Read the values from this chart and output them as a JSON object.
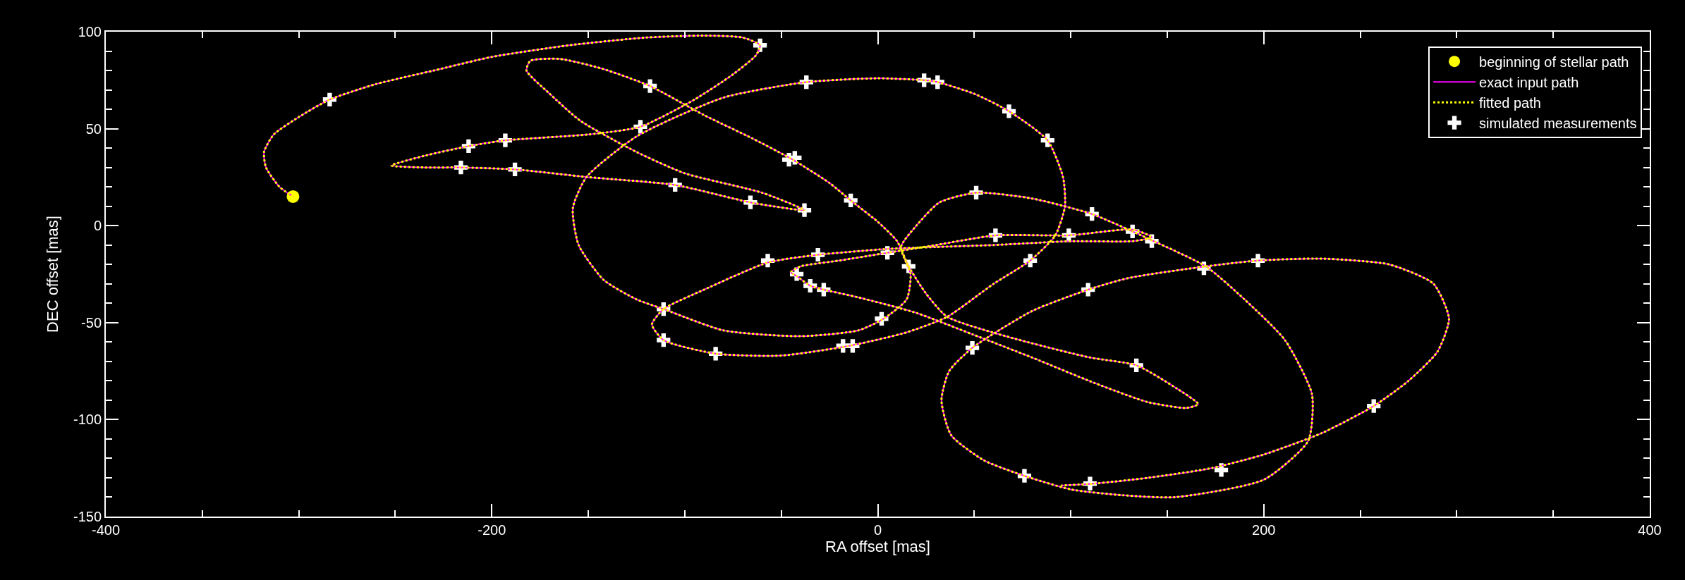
{
  "chart_data": {
    "type": "line",
    "xlabel": "RA offset [mas]",
    "ylabel": "DEC offset [mas]",
    "xlim": [
      -400,
      400
    ],
    "ylim": [
      -150,
      100
    ],
    "xticks": [
      -400,
      -200,
      0,
      200,
      400
    ],
    "yticks": [
      -150,
      -100,
      -50,
      0,
      50,
      100
    ],
    "grid": false,
    "legend": "top right",
    "series": [
      {
        "name": "beginning of stellar path",
        "type": "scatter",
        "marker": "circle",
        "color": "#ffff00",
        "x": [
          -303
        ],
        "values": [
          15
        ]
      },
      {
        "name": "exact input path",
        "line_style": "solid",
        "color": "#ff00ff",
        "x": [
          -303,
          -310,
          -317,
          -318,
          -313,
          -300,
          -284,
          -260,
          -230,
          -200,
          -160,
          -120,
          -90,
          -70,
          -61,
          -63,
          -75,
          -95,
          -123,
          -150,
          -193,
          -212,
          -235,
          -252,
          -235,
          -216,
          -188,
          -150,
          -105,
          -66,
          -38,
          -60,
          -100,
          -125,
          -154,
          -170,
          -182,
          -180,
          -165,
          -143,
          -118,
          -90,
          -65,
          -44,
          -25,
          -14,
          0,
          10,
          16,
          25,
          36,
          70,
          110,
          134,
          155,
          166,
          160,
          140,
          112,
          80,
          49,
          20,
          -10,
          -28,
          -35,
          -42,
          -45,
          -40,
          -20,
          5,
          30,
          61,
          99,
          132,
          142,
          132,
          100,
          60,
          30,
          5,
          -31,
          -57,
          -90,
          -111,
          -117,
          -111,
          -84,
          -50,
          -15,
          15,
          36,
          60,
          79,
          92,
          97,
          96,
          88,
          68,
          50,
          31,
          24,
          0,
          -37,
          -80,
          -125,
          -151,
          -158,
          -155,
          -142,
          -125,
          -111,
          -80,
          -40,
          -10,
          3,
          15,
          17,
          12,
          20,
          32,
          51,
          80,
          111,
          132,
          143,
          170,
          190,
          211,
          225,
          223,
          200,
          154,
          127,
          100,
          76,
          55,
          38,
          33,
          37,
          49,
          80,
          109,
          130,
          170,
          197,
          230,
          265,
          288,
          296,
          290,
          275,
          257,
          230,
          200,
          173,
          140,
          112,
          95
        ],
        "values": [
          15,
          20,
          30,
          38,
          47,
          56,
          65,
          73,
          80,
          87,
          93,
          97,
          98,
          97,
          93,
          88,
          78,
          65,
          51,
          47,
          44,
          41,
          36,
          31,
          30,
          30,
          29,
          25,
          21,
          12,
          8,
          17,
          27,
          38,
          54,
          68,
          80,
          85,
          86,
          81,
          72,
          57,
          45,
          34,
          22,
          13,
          2,
          -8,
          -21,
          -35,
          -47,
          -58,
          -68,
          -72,
          -84,
          -92,
          -94,
          -91,
          -81,
          -68,
          -56,
          -45,
          -37,
          -33,
          -31,
          -26,
          -24,
          -21,
          -18,
          -14,
          -10,
          -5,
          -5,
          -2,
          -6,
          -8,
          -8,
          -10,
          -11,
          -12,
          -15,
          -19,
          -33,
          -43,
          -51,
          -59,
          -66,
          -67,
          -62,
          -55,
          -47,
          -30,
          -18,
          -5,
          10,
          25,
          44,
          59,
          68,
          74,
          75,
          76,
          74,
          66,
          46,
          25,
          9,
          -10,
          -28,
          -38,
          -43,
          -54,
          -57,
          -54,
          -48,
          -38,
          -25,
          -11,
          0,
          12,
          17,
          14,
          6,
          -3,
          -8,
          -21,
          -38,
          -59,
          -87,
          -111,
          -131,
          -140,
          -139,
          -136,
          -129,
          -121,
          -108,
          -90,
          -75,
          -63,
          -44,
          -33,
          -27,
          -21,
          -18,
          -17,
          -20,
          -30,
          -48,
          -65,
          -80,
          -93,
          -107,
          -118,
          -125,
          -130,
          -133,
          -134
        ]
      },
      {
        "name": "fitted path",
        "line_style": "dotted",
        "color": "#ffff00",
        "x": [
          -303,
          -310,
          -317,
          -318,
          -313,
          -300,
          -284,
          -260,
          -230,
          -200,
          -160,
          -120,
          -90,
          -70,
          -61,
          -63,
          -75,
          -95,
          -123,
          -150,
          -193,
          -212,
          -235,
          -252,
          -235,
          -216,
          -188,
          -150,
          -105,
          -66,
          -38,
          -60,
          -100,
          -125,
          -154,
          -170,
          -182,
          -180,
          -165,
          -143,
          -118,
          -90,
          -65,
          -44,
          -25,
          -14,
          0,
          10,
          16,
          25,
          36,
          70,
          110,
          134,
          155,
          166,
          160,
          140,
          112,
          80,
          49,
          20,
          -10,
          -28,
          -35,
          -42,
          -45,
          -40,
          -20,
          5,
          30,
          61,
          99,
          132,
          142,
          132,
          100,
          60,
          30,
          5,
          -31,
          -57,
          -90,
          -111,
          -117,
          -111,
          -84,
          -50,
          -15,
          15,
          36,
          60,
          79,
          92,
          97,
          96,
          88,
          68,
          50,
          31,
          24,
          0,
          -37,
          -80,
          -125,
          -151,
          -158,
          -155,
          -142,
          -125,
          -111,
          -80,
          -40,
          -10,
          3,
          15,
          17,
          12,
          20,
          32,
          51,
          80,
          111,
          132,
          143,
          170,
          190,
          211,
          225,
          223,
          200,
          154,
          127,
          100,
          76,
          55,
          38,
          33,
          37,
          49,
          80,
          109,
          130,
          170,
          197,
          230,
          265,
          288,
          296,
          290,
          275,
          257,
          230,
          200,
          173,
          140,
          112,
          95
        ],
        "values": [
          15,
          20,
          30,
          38,
          47,
          56,
          65,
          73,
          80,
          87,
          93,
          97,
          98,
          97,
          93,
          88,
          78,
          65,
          51,
          47,
          44,
          41,
          36,
          31,
          30,
          30,
          29,
          25,
          21,
          12,
          8,
          17,
          27,
          38,
          54,
          68,
          80,
          85,
          86,
          81,
          72,
          57,
          45,
          34,
          22,
          13,
          2,
          -8,
          -21,
          -35,
          -47,
          -58,
          -68,
          -72,
          -84,
          -92,
          -94,
          -91,
          -81,
          -68,
          -56,
          -45,
          -37,
          -33,
          -31,
          -26,
          -24,
          -21,
          -18,
          -14,
          -10,
          -5,
          -5,
          -2,
          -6,
          -8,
          -8,
          -10,
          -11,
          -12,
          -15,
          -19,
          -33,
          -43,
          -51,
          -59,
          -66,
          -67,
          -62,
          -55,
          -47,
          -30,
          -18,
          -5,
          10,
          25,
          44,
          59,
          68,
          74,
          75,
          76,
          74,
          66,
          46,
          25,
          9,
          -10,
          -28,
          -38,
          -43,
          -54,
          -57,
          -54,
          -48,
          -38,
          -25,
          -11,
          0,
          12,
          17,
          14,
          6,
          -3,
          -8,
          -21,
          -38,
          -59,
          -87,
          -111,
          -131,
          -140,
          -139,
          -136,
          -129,
          -121,
          -108,
          -90,
          -75,
          -63,
          -44,
          -33,
          -27,
          -21,
          -18,
          -17,
          -20,
          -30,
          -48,
          -65,
          -80,
          -93,
          -107,
          -118,
          -125,
          -130,
          -133,
          -134
        ]
      },
      {
        "name": "simulated measurements",
        "type": "scatter",
        "marker": "cross",
        "color": "#ffffff",
        "x": [
          -284,
          -61,
          -118,
          -123,
          -193,
          -212,
          -216,
          -188,
          -105,
          -66,
          -38,
          -46,
          -43,
          -37,
          -14,
          24,
          31,
          68,
          88,
          51,
          111,
          132,
          142,
          99,
          61,
          5,
          16,
          79,
          169,
          197,
          109,
          134,
          49,
          2,
          -18,
          -13,
          -84,
          -111,
          -111,
          -57,
          -42,
          -35,
          -28,
          -31,
          257,
          178,
          76,
          110
        ],
        "values": [
          65,
          93,
          72,
          51,
          44,
          41,
          30,
          29,
          21,
          12,
          8,
          34,
          35,
          74,
          13,
          75,
          74,
          59,
          44,
          17,
          6,
          -3,
          -8,
          -5,
          -5,
          -14,
          -21,
          -18,
          -22,
          -18,
          -33,
          -72,
          -63,
          -48,
          -62,
          -62,
          -66,
          -59,
          -43,
          -18,
          -25,
          -31,
          -33,
          -15,
          -93,
          -126,
          -129,
          -133
        ]
      }
    ]
  }
}
